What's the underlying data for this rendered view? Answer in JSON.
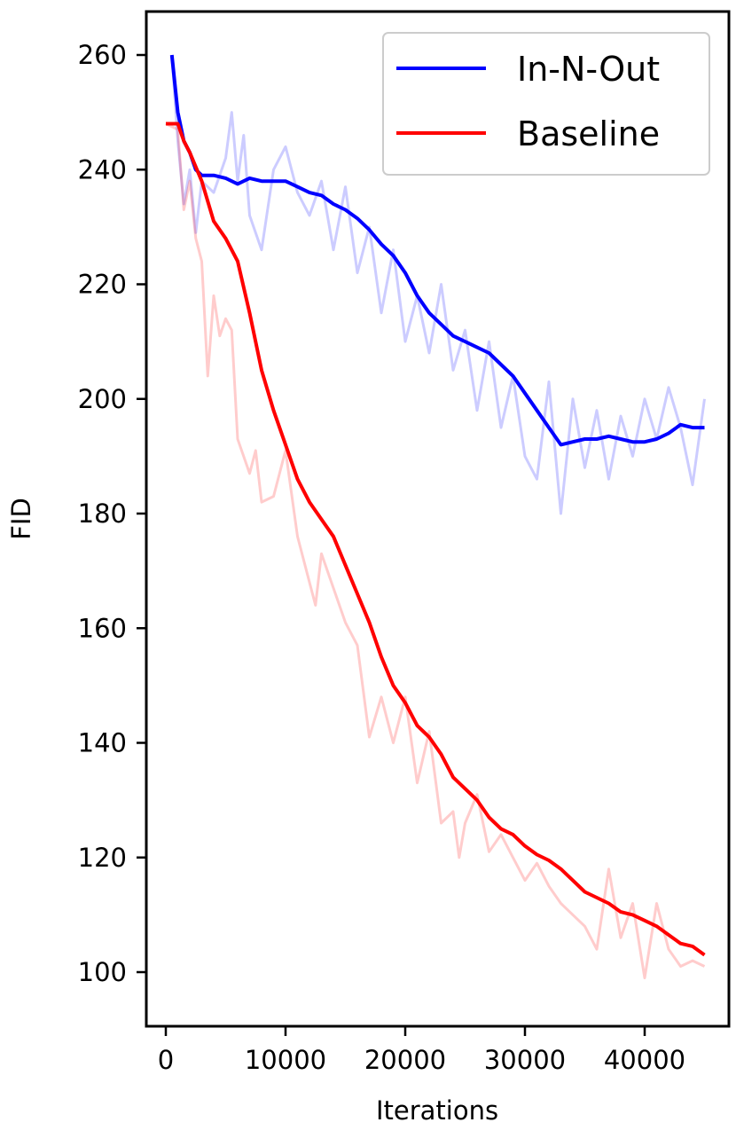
{
  "chart_data": {
    "type": "line",
    "title": "",
    "xlabel": "Iterations",
    "ylabel": "FID",
    "xlim": [
      -1700,
      47000
    ],
    "ylim": [
      90,
      267
    ],
    "xticks": [
      0,
      10000,
      20000,
      30000,
      40000
    ],
    "yticks": [
      100,
      120,
      140,
      160,
      180,
      200,
      220,
      240,
      260
    ],
    "grid": false,
    "legend_position": "top-right",
    "series": [
      {
        "name": "In-N-Out",
        "color": "#0000ff",
        "smoothed": {
          "x": [
            500,
            1000,
            1500,
            2000,
            2500,
            3000,
            4000,
            5000,
            6000,
            7000,
            8000,
            9000,
            10000,
            11000,
            12000,
            13000,
            14000,
            15000,
            16000,
            17000,
            18000,
            19000,
            20000,
            21000,
            22000,
            23000,
            24000,
            25000,
            26000,
            27000,
            28000,
            29000,
            30000,
            31000,
            32000,
            33000,
            34000,
            35000,
            36000,
            37000,
            38000,
            39000,
            40000,
            41000,
            42000,
            43000,
            44000,
            45000
          ],
          "y": [
            260,
            250,
            245,
            243,
            240,
            239,
            239,
            238.5,
            237.5,
            238.5,
            238,
            238,
            238,
            237,
            236,
            235.5,
            234,
            233,
            231.5,
            229.5,
            227,
            225,
            222,
            218,
            215,
            213,
            211,
            210,
            209,
            208,
            206,
            204,
            201,
            198,
            195,
            192,
            192.5,
            193,
            193,
            193.5,
            193,
            192.5,
            192.5,
            193,
            194,
            195.5,
            195,
            195
          ]
        },
        "raw": {
          "x": [
            500,
            1000,
            1500,
            2000,
            2500,
            3000,
            4000,
            5000,
            5500,
            6000,
            6500,
            7000,
            8000,
            9000,
            10000,
            11000,
            12000,
            13000,
            14000,
            15000,
            16000,
            17000,
            18000,
            19000,
            20000,
            21000,
            22000,
            23000,
            24000,
            25000,
            26000,
            27000,
            28000,
            29000,
            30000,
            31000,
            32000,
            33000,
            34000,
            35000,
            36000,
            37000,
            38000,
            39000,
            40000,
            41000,
            42000,
            43000,
            44000,
            45000
          ],
          "y": [
            260,
            245,
            234,
            240,
            229,
            238,
            236,
            242,
            250,
            238,
            246,
            232,
            226,
            240,
            244,
            236,
            232,
            238,
            226,
            237,
            222,
            230,
            215,
            226,
            210,
            218,
            208,
            220,
            205,
            212,
            198,
            210,
            195,
            204,
            190,
            186,
            203,
            180,
            200,
            188,
            198,
            186,
            197,
            190,
            200,
            193,
            202,
            195,
            185,
            200
          ]
        }
      },
      {
        "name": "Baseline",
        "color": "#ff0000",
        "smoothed": {
          "x": [
            0,
            1000,
            1500,
            2000,
            3000,
            4000,
            5000,
            6000,
            7000,
            8000,
            9000,
            10000,
            11000,
            12000,
            13000,
            14000,
            15000,
            16000,
            17000,
            18000,
            19000,
            20000,
            21000,
            22000,
            23000,
            24000,
            25000,
            26000,
            27000,
            28000,
            29000,
            30000,
            31000,
            32000,
            33000,
            34000,
            35000,
            36000,
            37000,
            38000,
            39000,
            40000,
            41000,
            42000,
            43000,
            44000,
            45000
          ],
          "y": [
            248,
            248,
            245,
            243,
            238,
            231,
            228,
            224,
            215,
            205,
            198,
            192,
            186,
            182,
            179,
            176,
            171,
            166,
            161,
            155,
            150,
            147,
            143,
            141,
            138,
            134,
            132,
            130,
            127,
            125,
            124,
            122,
            120.5,
            119.5,
            118,
            116,
            114,
            113,
            112,
            110.5,
            110,
            109,
            108,
            106.5,
            105,
            104.5,
            103
          ]
        },
        "raw": {
          "x": [
            0,
            1000,
            1500,
            2000,
            2500,
            3000,
            3500,
            4000,
            4500,
            5000,
            5500,
            6000,
            7000,
            7500,
            8000,
            9000,
            10000,
            11000,
            12000,
            12500,
            13000,
            14000,
            15000,
            16000,
            17000,
            18000,
            19000,
            20000,
            21000,
            22000,
            23000,
            24000,
            24500,
            25000,
            26000,
            27000,
            28000,
            29000,
            30000,
            31000,
            32000,
            33000,
            34000,
            35000,
            36000,
            37000,
            38000,
            39000,
            40000,
            41000,
            42000,
            43000,
            44000,
            45000
          ],
          "y": [
            248,
            247,
            233,
            238,
            228,
            224,
            204,
            218,
            211,
            214,
            212,
            193,
            187,
            191,
            182,
            183,
            191,
            176,
            168,
            164,
            173,
            167,
            161,
            157,
            141,
            148,
            140,
            148,
            133,
            142,
            126,
            128,
            120,
            126,
            131,
            121,
            124,
            120,
            116,
            119,
            115,
            112,
            110,
            108,
            104,
            118,
            106,
            112,
            99,
            112,
            104,
            101,
            102,
            101
          ]
        }
      }
    ]
  }
}
